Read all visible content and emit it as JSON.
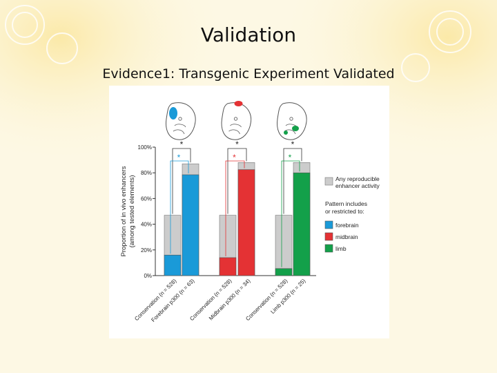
{
  "slide": {
    "title": "Validation",
    "subtitle": "Evidence1: Transgenic Experiment Validated",
    "background_color": "#fdf8e4"
  },
  "colors": {
    "forebrain": "#1a9ad8",
    "midbrain": "#e43234",
    "limb": "#13a04a",
    "reproducible": "#cccccc"
  },
  "chart_data": {
    "type": "bar",
    "stacked": true,
    "y_axis_label_line1": "Proportion of in vivo enhancers",
    "y_axis_label_line2": "(among tested elements)",
    "ylim": [
      0,
      100
    ],
    "y_ticks": [
      "0%",
      "20%",
      "40%",
      "60%",
      "80%",
      "100%"
    ],
    "y_tick_values": [
      0,
      20,
      40,
      60,
      80,
      100
    ],
    "groups": [
      {
        "name": "forebrain",
        "embryo_icon": "forebrain-embryo-icon",
        "bars": [
          {
            "label": "Conservation (n = 528)",
            "pattern": 16,
            "reproducible": 47
          },
          {
            "label": "Forebrain p300 (n = 63)",
            "pattern": 78.5,
            "reproducible": 87
          }
        ]
      },
      {
        "name": "midbrain",
        "embryo_icon": "midbrain-embryo-icon",
        "bars": [
          {
            "label": "Conservation (n = 528)",
            "pattern": 14,
            "reproducible": 47
          },
          {
            "label": "Midbrain p300 (n = 34)",
            "pattern": 82.5,
            "reproducible": 88
          }
        ]
      },
      {
        "name": "limb",
        "embryo_icon": "limb-embryo-icon",
        "bars": [
          {
            "label": "Conservation (n = 528)",
            "pattern": 5.5,
            "reproducible": 47
          },
          {
            "label": "Limb p300 (n = 25)",
            "pattern": 80,
            "reproducible": 88
          }
        ]
      }
    ],
    "significance_marker": "*",
    "legend": {
      "position": "right",
      "reproducible_label_line1": "Any reproducible",
      "reproducible_label_line2": "enhancer activity",
      "pattern_header_line1": "Pattern includes",
      "pattern_header_line2": "or restricted to:",
      "items": [
        {
          "key": "forebrain",
          "label": "forebrain"
        },
        {
          "key": "midbrain",
          "label": "midbrain"
        },
        {
          "key": "limb",
          "label": "limb"
        }
      ]
    }
  }
}
